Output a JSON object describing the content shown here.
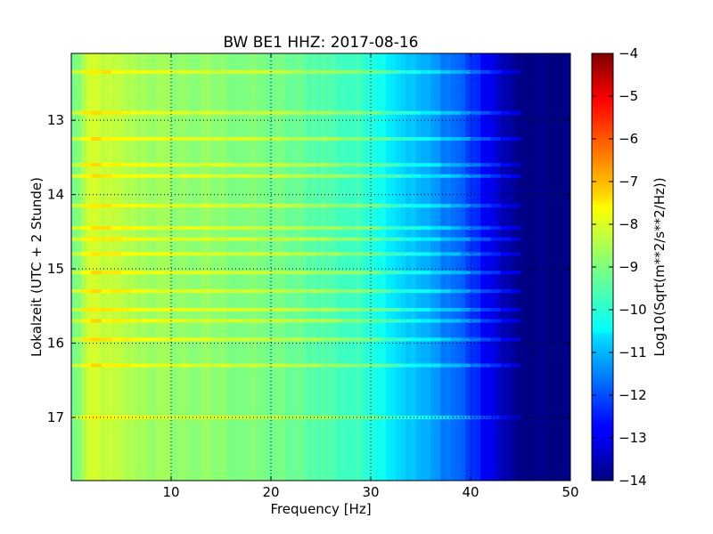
{
  "chart_data": {
    "type": "heatmap",
    "title": "BW BE1 HHZ: 2017-08-16",
    "xlabel": "Frequency [Hz]",
    "ylabel": "Lokalzeit (UTC + 2 Stunde)",
    "xlim": [
      0,
      50
    ],
    "ylim": [
      12.1,
      17.85
    ],
    "y_inverted": true,
    "x_ticks": [
      "10",
      "20",
      "30",
      "40",
      "50"
    ],
    "y_ticks": [
      "13",
      "14",
      "15",
      "16",
      "17"
    ],
    "grid": true,
    "colorbar": {
      "label": "Log10(Sqrt(m**2/s**2/Hz))",
      "range": [
        -14,
        -4
      ],
      "ticks": [
        "−4",
        "−5",
        "−6",
        "−7",
        "−8",
        "−9",
        "−10",
        "−11",
        "−12",
        "−13",
        "−14"
      ],
      "colormap": "jet"
    },
    "approx_level_by_frequency": [
      {
        "freq_hz": 0,
        "log10_psd": -9.3
      },
      {
        "freq_hz": 2,
        "log10_psd": -8.2
      },
      {
        "freq_hz": 5,
        "log10_psd": -8.5
      },
      {
        "freq_hz": 10,
        "log10_psd": -8.8
      },
      {
        "freq_hz": 15,
        "log10_psd": -8.9
      },
      {
        "freq_hz": 20,
        "log10_psd": -9.1
      },
      {
        "freq_hz": 25,
        "log10_psd": -9.4
      },
      {
        "freq_hz": 30,
        "log10_psd": -9.8
      },
      {
        "freq_hz": 33,
        "log10_psd": -10.6
      },
      {
        "freq_hz": 36,
        "log10_psd": -11.2
      },
      {
        "freq_hz": 39,
        "log10_psd": -11.8
      },
      {
        "freq_hz": 42,
        "log10_psd": -13.0
      },
      {
        "freq_hz": 45,
        "log10_psd": -14.0
      },
      {
        "freq_hz": 50,
        "log10_psd": -14.0
      }
    ],
    "bright_bands_hours": [
      12.35,
      12.9,
      13.25,
      13.6,
      13.75,
      14.15,
      14.45,
      14.6,
      14.8,
      15.05,
      15.3,
      15.55,
      15.7,
      15.95,
      16.3,
      17.0
    ]
  },
  "colors": {
    "jet_low": "#00007f",
    "jet_mid": "#7fff7f",
    "jet_high": "#7f0000"
  }
}
